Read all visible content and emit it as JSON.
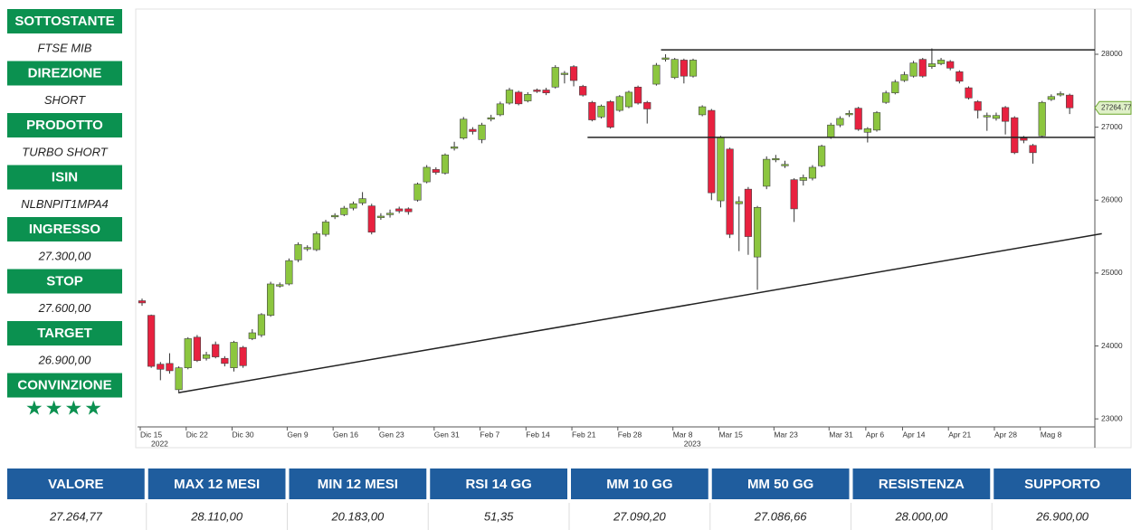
{
  "sidebar": [
    {
      "label": "SOTTOSTANTE",
      "value": "FTSE MIB"
    },
    {
      "label": "DIREZIONE",
      "value": "SHORT"
    },
    {
      "label": "PRODOTTO",
      "value": "TURBO SHORT"
    },
    {
      "label": "ISIN",
      "value": "NLBNPIT1MPA4"
    },
    {
      "label": "INGRESSO",
      "value": "27.300,00"
    },
    {
      "label": "STOP",
      "value": "27.600,00"
    },
    {
      "label": "TARGET",
      "value": "26.900,00"
    },
    {
      "label": "CONVINZIONE",
      "value": "★★★★"
    }
  ],
  "chart_data": {
    "type": "candlestick",
    "categories": [
      "Dic 15",
      null,
      null,
      null,
      null,
      "Dic 22",
      null,
      null,
      null,
      null,
      "Dic 30",
      null,
      null,
      null,
      null,
      null,
      "Gen 9",
      null,
      null,
      null,
      null,
      "Gen 16",
      null,
      null,
      null,
      null,
      "Gen 23",
      null,
      null,
      null,
      null,
      null,
      "Gen 31",
      null,
      null,
      null,
      null,
      "Feb 7",
      null,
      null,
      null,
      null,
      "Feb 14",
      null,
      null,
      null,
      null,
      "Feb 21",
      null,
      null,
      null,
      null,
      "Feb 28",
      null,
      null,
      null,
      null,
      null,
      "Mar 8",
      null,
      null,
      null,
      null,
      "Mar 15",
      null,
      null,
      null,
      null,
      null,
      "Mar 23",
      null,
      null,
      null,
      null,
      null,
      "Mar 31",
      null,
      null,
      null,
      "Apr 6",
      null,
      null,
      null,
      "Apr 14",
      null,
      null,
      null,
      null,
      "Apr 21",
      null,
      null,
      null,
      null,
      "Apr 28",
      null,
      null,
      null,
      null,
      "Mag 8",
      null,
      null,
      null
    ],
    "year_labels": [
      {
        "text": "2022",
        "category": "Dic 15"
      },
      {
        "text": "2023",
        "category": "Mar 8"
      }
    ],
    "open": [
      24620,
      24420,
      23750,
      23760,
      23400,
      23700,
      24120,
      23830,
      24020,
      23830,
      23700,
      23980,
      24100,
      24150,
      24420,
      24820,
      24850,
      25180,
      25330,
      25320,
      25530,
      25770,
      25800,
      25890,
      25960,
      25920,
      25760,
      25800,
      25880,
      25880,
      26000,
      26250,
      26420,
      26370,
      26710,
      26850,
      26970,
      26830,
      27110,
      27170,
      27330,
      27480,
      27360,
      27510,
      27510,
      27550,
      27730,
      27830,
      27560,
      27340,
      27140,
      27350,
      27230,
      27280,
      27550,
      27340,
      27590,
      27930,
      27680,
      27920,
      27700,
      27170,
      27230,
      25990,
      26700,
      25950,
      26150,
      25220,
      26190,
      26560,
      26470,
      26280,
      26270,
      26300,
      26470,
      26860,
      27030,
      27170,
      27260,
      26930,
      26960,
      27340,
      27470,
      27640,
      27700,
      27930,
      27830,
      27870,
      27900,
      27760,
      27540,
      27350,
      27140,
      27120,
      27270,
      27130,
      26850,
      26750,
      26880,
      27380,
      27450,
      27440
    ],
    "high": [
      24650,
      24430,
      23780,
      23900,
      23720,
      24120,
      24150,
      23920,
      24060,
      23860,
      24070,
      24000,
      24230,
      24450,
      24880,
      24870,
      25200,
      25420,
      25380,
      25570,
      25730,
      25820,
      25920,
      25980,
      26110,
      25950,
      25820,
      25870,
      25910,
      25900,
      26240,
      26480,
      26450,
      26640,
      26800,
      27140,
      27000,
      27060,
      27170,
      27350,
      27540,
      27500,
      27480,
      27530,
      27540,
      27850,
      27770,
      27850,
      27580,
      27360,
      27310,
      27370,
      27440,
      27500,
      27570,
      27360,
      27880,
      28000,
      27950,
      27940,
      27940,
      27300,
      27250,
      26880,
      26720,
      26050,
      26180,
      25920,
      26600,
      26620,
      26540,
      26300,
      26350,
      26480,
      26760,
      27060,
      27150,
      27230,
      27280,
      27000,
      27220,
      27500,
      27650,
      27760,
      27910,
      27950,
      28080,
      27950,
      27920,
      27780,
      27560,
      27370,
      27200,
      27200,
      27290,
      27150,
      26880,
      26770,
      27360,
      27450,
      27490,
      27460
    ],
    "low": [
      24550,
      23700,
      23530,
      23620,
      23350,
      23680,
      23780,
      23800,
      23830,
      23720,
      23650,
      23700,
      24080,
      24120,
      24400,
      24800,
      24830,
      25150,
      25300,
      25300,
      25500,
      25740,
      25780,
      25860,
      25930,
      25530,
      25730,
      25760,
      25820,
      25800,
      25980,
      26230,
      26350,
      26350,
      26680,
      26830,
      26900,
      26780,
      27080,
      27150,
      27310,
      27300,
      27340,
      27470,
      27440,
      27530,
      27600,
      27560,
      27420,
      27080,
      27120,
      26980,
      27210,
      27260,
      27310,
      27050,
      27570,
      27900,
      27660,
      27600,
      27680,
      27150,
      26000,
      25900,
      25480,
      25300,
      25250,
      24770,
      26150,
      26520,
      26440,
      25700,
      26200,
      26270,
      26450,
      26840,
      27000,
      27140,
      26950,
      26790,
      26940,
      27320,
      27450,
      27620,
      27680,
      27680,
      27800,
      27850,
      27780,
      27600,
      27380,
      27120,
      26950,
      27090,
      26900,
      26630,
      26780,
      26500,
      26860,
      27360,
      27420,
      27180
    ],
    "close": [
      24590,
      23720,
      23680,
      23660,
      23700,
      24100,
      23800,
      23880,
      23850,
      23760,
      24050,
      23730,
      24180,
      24430,
      24850,
      24840,
      25170,
      25390,
      25350,
      25540,
      25700,
      25790,
      25890,
      25950,
      26020,
      25560,
      25780,
      25820,
      25850,
      25840,
      26220,
      26450,
      26380,
      26620,
      26730,
      27110,
      26940,
      27030,
      27130,
      27320,
      27510,
      27320,
      27450,
      27490,
      27470,
      27820,
      27740,
      27640,
      27440,
      27100,
      27290,
      27000,
      27420,
      27480,
      27330,
      27250,
      27850,
      27950,
      27930,
      27700,
      27920,
      27280,
      26100,
      26860,
      25530,
      25980,
      25500,
      25900,
      26560,
      26570,
      26490,
      25880,
      26310,
      26450,
      26740,
      27030,
      27120,
      27190,
      26970,
      26980,
      27200,
      27470,
      27620,
      27720,
      27880,
      27700,
      27870,
      27920,
      27810,
      27630,
      27400,
      27230,
      27160,
      27160,
      27080,
      26650,
      26820,
      26650,
      27340,
      27420,
      27460,
      27265
    ],
    "up_color": "#8cc63f",
    "down_color": "#e8213f",
    "ylim": [
      22890,
      28620
    ],
    "yticks": [
      23000,
      24000,
      25000,
      26000,
      27000,
      28000
    ],
    "last_price": 27264.77,
    "levels": [
      {
        "value": 28060,
        "from": 57
      },
      {
        "value": 26860,
        "from": 49
      }
    ],
    "trendline": {
      "from": [
        4,
        23360
      ],
      "to": [
        104.5,
        25540
      ]
    }
  },
  "table": {
    "headers": [
      "VALORE",
      "MAX 12 MESI",
      "MIN 12 MESI",
      "RSI 14 GG",
      "MM 10 GG",
      "MM 50 GG",
      "RESISTENZA",
      "SUPPORTO"
    ],
    "values": [
      "27.264,77",
      "28.110,00",
      "20.183,00",
      "51,35",
      "27.090,20",
      "27.086,66",
      "28.000,00",
      "26.900,00"
    ]
  }
}
